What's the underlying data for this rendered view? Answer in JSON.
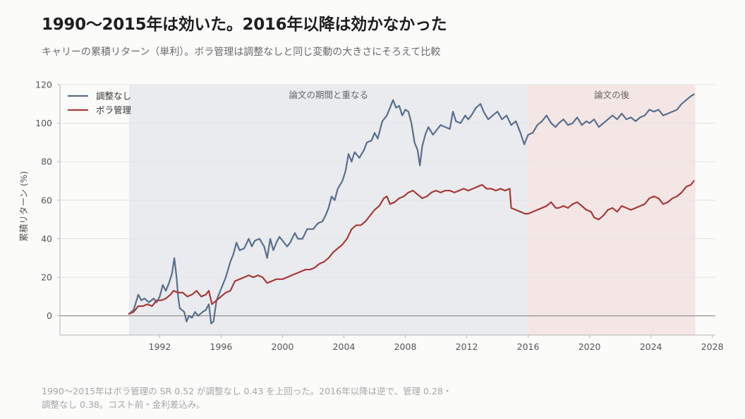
{
  "title": "1990〜2015年は効いた。2016年以降は効かなかった",
  "subtitle": "キャリーの累積リターン（単利）。ボラ管理は調整なしと同じ変動の大きさにそろえて比較",
  "footnote": [
    "1990〜2015年はボラ管理の SR 0.52 が調整なし 0.43 を上回った。2016年以降は逆で、管理 0.28・",
    "調整なし 0.38。コスト前・金利差込み。"
  ],
  "colors": {
    "unadjusted": "#5a6e8c",
    "vol_managed": "#a8393a",
    "in_sample_shade": "#e9ebee",
    "post_shade": "#f4e6e5",
    "zero_line": "#8a8a8a"
  },
  "chart_data": {
    "type": "line",
    "ylabel": "累積リターン (%)",
    "ylim": [
      -10,
      120
    ],
    "xlim": [
      1985.5,
      2028.2
    ],
    "yticks": [
      0,
      20,
      40,
      60,
      80,
      100,
      120
    ],
    "xticks": [
      1992,
      1996,
      2000,
      2004,
      2008,
      2012,
      2016,
      2020,
      2024,
      2028
    ],
    "grid": true,
    "legend_position": "top-left",
    "regions": [
      {
        "label": "論文の期間と重なる",
        "start": 1990.0,
        "end": 2016.0
      },
      {
        "label": "論文の後",
        "start": 2016.0,
        "end": 2026.9
      }
    ],
    "series": [
      {
        "name": "調整なし",
        "points": [
          [
            1990.0,
            1
          ],
          [
            1990.3,
            3
          ],
          [
            1990.6,
            11
          ],
          [
            1990.8,
            8
          ],
          [
            1991.0,
            9
          ],
          [
            1991.3,
            7
          ],
          [
            1991.6,
            9
          ],
          [
            1991.8,
            7
          ],
          [
            1992.0,
            10
          ],
          [
            1992.2,
            16
          ],
          [
            1992.4,
            13
          ],
          [
            1992.6,
            17
          ],
          [
            1992.8,
            22
          ],
          [
            1992.95,
            30
          ],
          [
            1993.1,
            20
          ],
          [
            1993.2,
            10
          ],
          [
            1993.3,
            4
          ],
          [
            1993.6,
            2
          ],
          [
            1993.75,
            -3
          ],
          [
            1993.9,
            0
          ],
          [
            1994.1,
            -1
          ],
          [
            1994.3,
            2
          ],
          [
            1994.5,
            0
          ],
          [
            1994.8,
            2
          ],
          [
            1995.0,
            3
          ],
          [
            1995.2,
            6
          ],
          [
            1995.35,
            -4
          ],
          [
            1995.5,
            -3
          ],
          [
            1995.7,
            8
          ],
          [
            1996.0,
            14
          ],
          [
            1996.3,
            20
          ],
          [
            1996.6,
            28
          ],
          [
            1996.8,
            32
          ],
          [
            1997.0,
            38
          ],
          [
            1997.2,
            34
          ],
          [
            1997.5,
            35
          ],
          [
            1997.8,
            40
          ],
          [
            1998.0,
            36
          ],
          [
            1998.2,
            39
          ],
          [
            1998.5,
            40
          ],
          [
            1998.8,
            36
          ],
          [
            1999.0,
            30
          ],
          [
            1999.2,
            40
          ],
          [
            1999.4,
            34
          ],
          [
            1999.6,
            38
          ],
          [
            1999.8,
            41
          ],
          [
            2000.0,
            39
          ],
          [
            2000.3,
            36
          ],
          [
            2000.5,
            38
          ],
          [
            2000.8,
            43
          ],
          [
            2001.0,
            40
          ],
          [
            2001.3,
            40
          ],
          [
            2001.6,
            45
          ],
          [
            2002.0,
            45
          ],
          [
            2002.3,
            48
          ],
          [
            2002.6,
            49
          ],
          [
            2002.8,
            52
          ],
          [
            2003.0,
            56
          ],
          [
            2003.2,
            62
          ],
          [
            2003.4,
            60
          ],
          [
            2003.6,
            66
          ],
          [
            2003.9,
            70
          ],
          [
            2004.1,
            75
          ],
          [
            2004.3,
            84
          ],
          [
            2004.5,
            80
          ],
          [
            2004.7,
            85
          ],
          [
            2005.0,
            82
          ],
          [
            2005.3,
            86
          ],
          [
            2005.5,
            90
          ],
          [
            2005.8,
            91
          ],
          [
            2006.0,
            95
          ],
          [
            2006.2,
            92
          ],
          [
            2006.5,
            101
          ],
          [
            2006.8,
            104
          ],
          [
            2007.0,
            108
          ],
          [
            2007.2,
            112
          ],
          [
            2007.4,
            108
          ],
          [
            2007.6,
            109
          ],
          [
            2007.8,
            104
          ],
          [
            2008.0,
            107
          ],
          [
            2008.2,
            106
          ],
          [
            2008.4,
            100
          ],
          [
            2008.6,
            90
          ],
          [
            2008.8,
            86
          ],
          [
            2008.95,
            78
          ],
          [
            2009.1,
            88
          ],
          [
            2009.3,
            94
          ],
          [
            2009.5,
            98
          ],
          [
            2009.8,
            94
          ],
          [
            2010.0,
            96
          ],
          [
            2010.3,
            99
          ],
          [
            2010.6,
            98
          ],
          [
            2010.9,
            97
          ],
          [
            2011.1,
            106
          ],
          [
            2011.3,
            101
          ],
          [
            2011.6,
            100
          ],
          [
            2011.9,
            104
          ],
          [
            2012.1,
            102
          ],
          [
            2012.3,
            104
          ],
          [
            2012.6,
            108
          ],
          [
            2012.9,
            110
          ],
          [
            2013.1,
            106
          ],
          [
            2013.4,
            102
          ],
          [
            2013.7,
            104
          ],
          [
            2014.0,
            106
          ],
          [
            2014.3,
            102
          ],
          [
            2014.6,
            104
          ],
          [
            2014.9,
            99
          ],
          [
            2015.2,
            101
          ],
          [
            2015.5,
            95
          ],
          [
            2015.75,
            89
          ],
          [
            2016.0,
            94
          ],
          [
            2016.3,
            95
          ],
          [
            2016.6,
            99
          ],
          [
            2016.9,
            101
          ],
          [
            2017.2,
            104
          ],
          [
            2017.5,
            100
          ],
          [
            2017.8,
            98
          ],
          [
            2018.0,
            100
          ],
          [
            2018.3,
            102
          ],
          [
            2018.6,
            99
          ],
          [
            2018.9,
            100
          ],
          [
            2019.2,
            103
          ],
          [
            2019.5,
            99
          ],
          [
            2019.8,
            101
          ],
          [
            2020.0,
            100
          ],
          [
            2020.3,
            102
          ],
          [
            2020.6,
            98
          ],
          [
            2020.9,
            100
          ],
          [
            2021.2,
            102
          ],
          [
            2021.5,
            104
          ],
          [
            2021.8,
            102
          ],
          [
            2022.1,
            105
          ],
          [
            2022.4,
            102
          ],
          [
            2022.7,
            103
          ],
          [
            2023.0,
            101
          ],
          [
            2023.3,
            103
          ],
          [
            2023.6,
            104
          ],
          [
            2023.9,
            107
          ],
          [
            2024.2,
            106
          ],
          [
            2024.5,
            107
          ],
          [
            2024.8,
            104
          ],
          [
            2025.1,
            105
          ],
          [
            2025.4,
            106
          ],
          [
            2025.7,
            107
          ],
          [
            2026.0,
            110
          ],
          [
            2026.3,
            112
          ],
          [
            2026.6,
            114
          ],
          [
            2026.8,
            115
          ]
        ]
      },
      {
        "name": "ボラ管理",
        "points": [
          [
            1990.0,
            1
          ],
          [
            1990.3,
            2
          ],
          [
            1990.6,
            5
          ],
          [
            1990.9,
            5
          ],
          [
            1991.2,
            6
          ],
          [
            1991.5,
            5
          ],
          [
            1991.8,
            8
          ],
          [
            1992.1,
            8
          ],
          [
            1992.4,
            9
          ],
          [
            1992.7,
            11
          ],
          [
            1992.9,
            13
          ],
          [
            1993.2,
            12
          ],
          [
            1993.5,
            12
          ],
          [
            1993.8,
            10
          ],
          [
            1994.1,
            11
          ],
          [
            1994.4,
            13
          ],
          [
            1994.7,
            10
          ],
          [
            1995.0,
            11
          ],
          [
            1995.2,
            13
          ],
          [
            1995.4,
            6
          ],
          [
            1995.7,
            8
          ],
          [
            1996.0,
            10
          ],
          [
            1996.3,
            12
          ],
          [
            1996.6,
            13
          ],
          [
            1996.9,
            18
          ],
          [
            1997.2,
            19
          ],
          [
            1997.5,
            20
          ],
          [
            1997.8,
            21
          ],
          [
            1998.1,
            20
          ],
          [
            1998.4,
            21
          ],
          [
            1998.7,
            20
          ],
          [
            1999.0,
            17
          ],
          [
            1999.3,
            18
          ],
          [
            1999.6,
            19
          ],
          [
            2000.0,
            19
          ],
          [
            2000.3,
            20
          ],
          [
            2000.6,
            21
          ],
          [
            2000.9,
            22
          ],
          [
            2001.2,
            23
          ],
          [
            2001.5,
            24
          ],
          [
            2001.8,
            24
          ],
          [
            2002.1,
            25
          ],
          [
            2002.4,
            27
          ],
          [
            2002.7,
            28
          ],
          [
            2003.0,
            30
          ],
          [
            2003.3,
            33
          ],
          [
            2003.6,
            35
          ],
          [
            2003.9,
            37
          ],
          [
            2004.2,
            40
          ],
          [
            2004.5,
            45
          ],
          [
            2004.8,
            47
          ],
          [
            2005.1,
            47
          ],
          [
            2005.4,
            49
          ],
          [
            2005.7,
            52
          ],
          [
            2006.0,
            55
          ],
          [
            2006.3,
            57
          ],
          [
            2006.6,
            61
          ],
          [
            2006.8,
            62
          ],
          [
            2007.0,
            58
          ],
          [
            2007.3,
            59
          ],
          [
            2007.6,
            61
          ],
          [
            2007.9,
            62
          ],
          [
            2008.2,
            64
          ],
          [
            2008.5,
            65
          ],
          [
            2008.8,
            63
          ],
          [
            2009.1,
            61
          ],
          [
            2009.4,
            62
          ],
          [
            2009.7,
            64
          ],
          [
            2010.0,
            65
          ],
          [
            2010.3,
            64
          ],
          [
            2010.6,
            65
          ],
          [
            2010.9,
            65
          ],
          [
            2011.2,
            64
          ],
          [
            2011.5,
            65
          ],
          [
            2011.8,
            66
          ],
          [
            2012.1,
            65
          ],
          [
            2012.4,
            66
          ],
          [
            2012.7,
            67
          ],
          [
            2013.0,
            68
          ],
          [
            2013.3,
            66
          ],
          [
            2013.6,
            66
          ],
          [
            2013.9,
            65
          ],
          [
            2014.2,
            66
          ],
          [
            2014.5,
            65
          ],
          [
            2014.8,
            66
          ],
          [
            2014.9,
            56
          ],
          [
            2015.2,
            55
          ],
          [
            2015.5,
            54
          ],
          [
            2015.8,
            53
          ],
          [
            2016.0,
            53
          ],
          [
            2016.3,
            54
          ],
          [
            2016.6,
            55
          ],
          [
            2016.9,
            56
          ],
          [
            2017.2,
            57
          ],
          [
            2017.5,
            59
          ],
          [
            2017.8,
            56
          ],
          [
            2018.0,
            56
          ],
          [
            2018.3,
            57
          ],
          [
            2018.6,
            56
          ],
          [
            2018.9,
            58
          ],
          [
            2019.2,
            59
          ],
          [
            2019.5,
            57
          ],
          [
            2019.8,
            55
          ],
          [
            2020.1,
            54
          ],
          [
            2020.3,
            51
          ],
          [
            2020.6,
            50
          ],
          [
            2020.9,
            52
          ],
          [
            2021.2,
            55
          ],
          [
            2021.5,
            56
          ],
          [
            2021.8,
            54
          ],
          [
            2022.1,
            57
          ],
          [
            2022.4,
            56
          ],
          [
            2022.7,
            55
          ],
          [
            2023.0,
            56
          ],
          [
            2023.3,
            57
          ],
          [
            2023.6,
            58
          ],
          [
            2023.9,
            61
          ],
          [
            2024.2,
            62
          ],
          [
            2024.5,
            61
          ],
          [
            2024.8,
            58
          ],
          [
            2025.1,
            59
          ],
          [
            2025.4,
            61
          ],
          [
            2025.7,
            62
          ],
          [
            2026.0,
            64
          ],
          [
            2026.3,
            67
          ],
          [
            2026.6,
            68
          ],
          [
            2026.8,
            70
          ]
        ]
      }
    ]
  }
}
